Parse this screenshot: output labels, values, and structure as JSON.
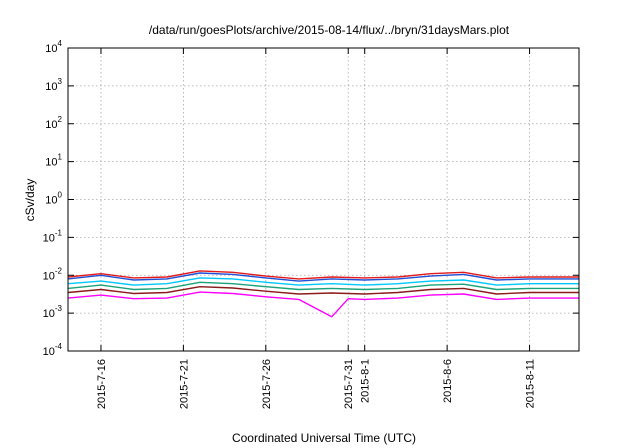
{
  "chart_data": {
    "type": "line",
    "title": "/data/run/goesPlots/archive/2015-08-14/flux/../bryn/31daysMars.plot",
    "xlabel": "Coordinated Universal Time (UTC)",
    "ylabel": "cSv/day",
    "yscale": "log",
    "ylim": [
      0.0001,
      10000
    ],
    "xlim": [
      "2015-07-14",
      "2015-08-14"
    ],
    "grid": true,
    "y_ticks": [
      {
        "base": "10",
        "exp": "-4",
        "value": 0.0001
      },
      {
        "base": "10",
        "exp": "-3",
        "value": 0.001
      },
      {
        "base": "10",
        "exp": "-2",
        "value": 0.01
      },
      {
        "base": "10",
        "exp": "-1",
        "value": 0.1
      },
      {
        "base": "10",
        "exp": "0",
        "value": 1
      },
      {
        "base": "10",
        "exp": "1",
        "value": 10
      },
      {
        "base": "10",
        "exp": "2",
        "value": 100
      },
      {
        "base": "10",
        "exp": "3",
        "value": 1000
      },
      {
        "base": "10",
        "exp": "4",
        "value": 10000
      }
    ],
    "x_ticks": [
      {
        "date": "2015-07-16",
        "label": "2015-7-16"
      },
      {
        "date": "2015-07-21",
        "label": "2015-7-21"
      },
      {
        "date": "2015-07-26",
        "label": "2015-7-26"
      },
      {
        "date": "2015-07-31",
        "label": "2015-7-31"
      },
      {
        "date": "2015-08-01",
        "label": "2015-8-1"
      },
      {
        "date": "2015-08-06",
        "label": "2015-8-6"
      },
      {
        "date": "2015-08-11",
        "label": "2015-8-11"
      }
    ],
    "series": [
      {
        "color": "#e31a1c",
        "x": [
          "2015-07-14",
          "2015-07-16",
          "2015-07-18",
          "2015-07-20",
          "2015-07-22",
          "2015-07-24",
          "2015-07-26",
          "2015-07-28",
          "2015-07-30",
          "2015-08-01",
          "2015-08-03",
          "2015-08-05",
          "2015-08-07",
          "2015-08-09",
          "2015-08-11",
          "2015-08-14"
        ],
        "y": [
          0.009,
          0.011,
          0.0085,
          0.009,
          0.013,
          0.012,
          0.0095,
          0.008,
          0.009,
          0.0085,
          0.009,
          0.011,
          0.012,
          0.0085,
          0.009,
          0.009
        ]
      },
      {
        "color": "#1f4fd6",
        "x": [
          "2015-07-14",
          "2015-07-16",
          "2015-07-18",
          "2015-07-20",
          "2015-07-22",
          "2015-07-24",
          "2015-07-26",
          "2015-07-28",
          "2015-07-30",
          "2015-08-01",
          "2015-08-03",
          "2015-08-05",
          "2015-08-07",
          "2015-08-09",
          "2015-08-11",
          "2015-08-14"
        ],
        "y": [
          0.008,
          0.01,
          0.0075,
          0.008,
          0.0115,
          0.0105,
          0.0085,
          0.007,
          0.008,
          0.0075,
          0.008,
          0.0095,
          0.0105,
          0.0075,
          0.008,
          0.008
        ]
      },
      {
        "color": "#00c8ff",
        "x": [
          "2015-07-14",
          "2015-07-16",
          "2015-07-18",
          "2015-07-20",
          "2015-07-22",
          "2015-07-24",
          "2015-07-26",
          "2015-07-28",
          "2015-07-30",
          "2015-08-01",
          "2015-08-03",
          "2015-08-05",
          "2015-08-07",
          "2015-08-09",
          "2015-08-11",
          "2015-08-14"
        ],
        "y": [
          0.006,
          0.007,
          0.0055,
          0.006,
          0.0085,
          0.008,
          0.0065,
          0.0055,
          0.006,
          0.0055,
          0.006,
          0.007,
          0.0075,
          0.0055,
          0.006,
          0.006
        ]
      },
      {
        "color": "#1aa37a",
        "x": [
          "2015-07-14",
          "2015-07-16",
          "2015-07-18",
          "2015-07-20",
          "2015-07-22",
          "2015-07-24",
          "2015-07-26",
          "2015-07-28",
          "2015-07-30",
          "2015-08-01",
          "2015-08-03",
          "2015-08-05",
          "2015-08-07",
          "2015-08-09",
          "2015-08-11",
          "2015-08-14"
        ],
        "y": [
          0.0045,
          0.0055,
          0.0042,
          0.0045,
          0.0065,
          0.006,
          0.005,
          0.0042,
          0.0045,
          0.0042,
          0.0045,
          0.0055,
          0.0058,
          0.0042,
          0.0045,
          0.0045
        ]
      },
      {
        "color": "#8b1a1a",
        "x": [
          "2015-07-14",
          "2015-07-16",
          "2015-07-18",
          "2015-07-20",
          "2015-07-22",
          "2015-07-24",
          "2015-07-26",
          "2015-07-28",
          "2015-07-30",
          "2015-08-01",
          "2015-08-03",
          "2015-08-05",
          "2015-08-07",
          "2015-08-09",
          "2015-08-11",
          "2015-08-14"
        ],
        "y": [
          0.0035,
          0.0042,
          0.0033,
          0.0035,
          0.005,
          0.0046,
          0.0038,
          0.0032,
          0.0034,
          0.0032,
          0.0035,
          0.0042,
          0.0045,
          0.0032,
          0.0035,
          0.0035
        ]
      },
      {
        "color": "#ff00ff",
        "x": [
          "2015-07-14",
          "2015-07-16",
          "2015-07-18",
          "2015-07-20",
          "2015-07-22",
          "2015-07-24",
          "2015-07-26",
          "2015-07-28",
          "2015-07-30",
          "2015-07-31",
          "2015-08-01",
          "2015-08-03",
          "2015-08-05",
          "2015-08-07",
          "2015-08-09",
          "2015-08-11",
          "2015-08-14"
        ],
        "y": [
          0.0025,
          0.003,
          0.0024,
          0.0025,
          0.0036,
          0.0033,
          0.0027,
          0.0023,
          0.0008,
          0.0024,
          0.0023,
          0.0025,
          0.003,
          0.0032,
          0.0023,
          0.0025,
          0.0025
        ]
      }
    ]
  }
}
